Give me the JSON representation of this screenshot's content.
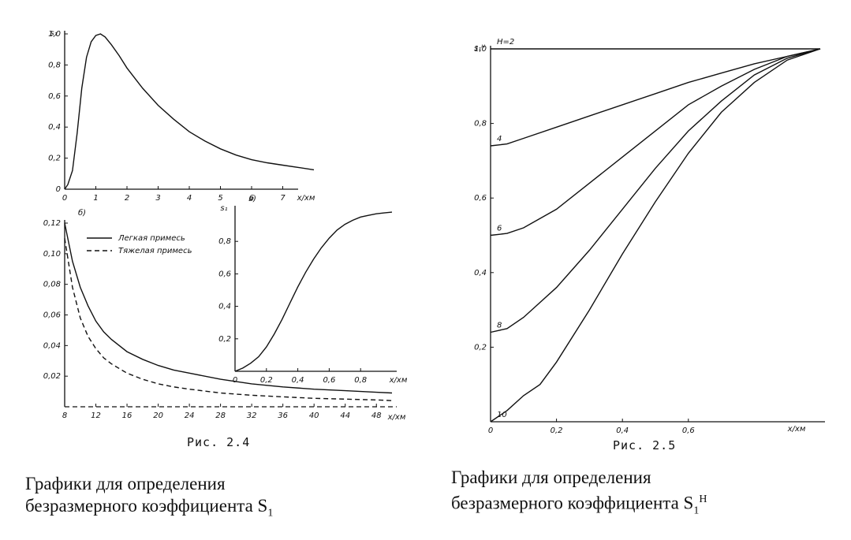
{
  "header_fragment": "",
  "fig24": {
    "caption": "Рис. 2.4",
    "desc_line1": "Графики для определения",
    "desc_line2": "безразмерного коэффициента S",
    "desc_sub": "1"
  },
  "fig25": {
    "caption": "Рис. 2.5",
    "desc_line1": "Графики для определения",
    "desc_line2": "безразмерного коэффициента S",
    "desc_sub": "1",
    "desc_sup": "H"
  },
  "chart_data": [
    {
      "id": "fig24a",
      "type": "line",
      "panel_label": "",
      "ylabel": "s₁",
      "xlabel": "x/xм",
      "xlim": [
        0,
        8
      ],
      "ylim": [
        0,
        1.0
      ],
      "xticks": [
        "0",
        "1",
        "2",
        "3",
        "4",
        "5",
        "6",
        "7"
      ],
      "yticks": [
        "0",
        "0,2",
        "0,4",
        "0,6",
        "0,8",
        "1,0"
      ],
      "series": [
        {
          "x": [
            0,
            0.1,
            0.25,
            0.4,
            0.55,
            0.7,
            0.85,
            1.0,
            1.15,
            1.3,
            1.5,
            1.75,
            2.0,
            2.5,
            3.0,
            3.5,
            4.0,
            4.5,
            5.0,
            5.5,
            6.0,
            6.5,
            7.0,
            7.5,
            8.0
          ],
          "y": [
            0,
            0.03,
            0.12,
            0.36,
            0.65,
            0.85,
            0.95,
            0.99,
            1.0,
            0.98,
            0.93,
            0.86,
            0.78,
            0.65,
            0.54,
            0.45,
            0.37,
            0.31,
            0.26,
            0.22,
            0.19,
            0.17,
            0.155,
            0.14,
            0.125
          ]
        }
      ]
    },
    {
      "id": "fig24b",
      "type": "line",
      "panel_label": "б)",
      "xlabel": "x/xм",
      "xlim": [
        8,
        50
      ],
      "ylim": [
        0,
        0.12
      ],
      "xticks": [
        "8",
        "12",
        "16",
        "20",
        "24",
        "28",
        "32",
        "36",
        "40",
        "44",
        "48"
      ],
      "yticks": [
        "0,02",
        "0,04",
        "0,06",
        "0,08",
        "0,10",
        "0,12"
      ],
      "legend": [
        "Легкая примесь",
        "Тяжелая примесь"
      ],
      "series": [
        {
          "name": "Легкая примесь",
          "style": "solid",
          "x": [
            8,
            9,
            10,
            11,
            12,
            13,
            14,
            16,
            18,
            20,
            22,
            24,
            28,
            32,
            36,
            40,
            44,
            48,
            50
          ],
          "y": [
            0.12,
            0.095,
            0.078,
            0.066,
            0.056,
            0.049,
            0.044,
            0.036,
            0.031,
            0.027,
            0.024,
            0.022,
            0.018,
            0.015,
            0.013,
            0.0115,
            0.0105,
            0.0095,
            0.009
          ]
        },
        {
          "name": "Тяжелая примесь",
          "style": "dashed",
          "x": [
            8,
            9,
            10,
            11,
            12,
            13,
            14,
            16,
            18,
            20,
            22,
            24,
            28,
            32,
            36,
            40,
            44,
            48,
            50
          ],
          "y": [
            0.11,
            0.078,
            0.058,
            0.046,
            0.038,
            0.032,
            0.028,
            0.022,
            0.018,
            0.015,
            0.013,
            0.0115,
            0.009,
            0.0075,
            0.0065,
            0.0055,
            0.005,
            0.0045,
            0.004
          ]
        }
      ]
    },
    {
      "id": "fig24v",
      "type": "line",
      "panel_label": "в)",
      "ylabel": "s₁",
      "xlabel": "x/xм",
      "xlim": [
        0,
        1.0
      ],
      "ylim": [
        0,
        1.0
      ],
      "xticks": [
        "0",
        "0,2",
        "0,4",
        "0,6",
        "0,8"
      ],
      "yticks": [
        "0,2",
        "0,4",
        "0,6",
        "0,8"
      ],
      "series": [
        {
          "x": [
            0,
            0.05,
            0.1,
            0.15,
            0.2,
            0.25,
            0.3,
            0.35,
            0.4,
            0.45,
            0.5,
            0.55,
            0.6,
            0.65,
            0.7,
            0.75,
            0.8,
            0.85,
            0.9,
            0.95,
            1.0
          ],
          "y": [
            0,
            0.02,
            0.05,
            0.09,
            0.15,
            0.23,
            0.32,
            0.42,
            0.52,
            0.61,
            0.69,
            0.76,
            0.82,
            0.87,
            0.905,
            0.93,
            0.95,
            0.96,
            0.97,
            0.975,
            0.98
          ]
        }
      ]
    },
    {
      "id": "fig25",
      "type": "line",
      "ylabel": "s₁ᴴ",
      "xlabel": "x/xм",
      "xlim": [
        0,
        1.0
      ],
      "ylim": [
        0,
        1.0
      ],
      "xticks": [
        "0",
        "0,2",
        "0,4",
        "0,6"
      ],
      "yticks": [
        "0,2",
        "0,4",
        "0,6",
        "0,8",
        "1,0"
      ],
      "series": [
        {
          "name": "H=2",
          "label": "H=2",
          "x": [
            0,
            1.0
          ],
          "y": [
            1.0,
            1.0
          ]
        },
        {
          "name": "4",
          "label": "4",
          "x": [
            0,
            0.05,
            0.1,
            0.2,
            0.3,
            0.4,
            0.5,
            0.6,
            0.7,
            0.8,
            0.9,
            1.0
          ],
          "y": [
            0.74,
            0.745,
            0.76,
            0.79,
            0.82,
            0.85,
            0.88,
            0.91,
            0.935,
            0.96,
            0.98,
            1.0
          ]
        },
        {
          "name": "6",
          "label": "6",
          "x": [
            0,
            0.05,
            0.1,
            0.2,
            0.3,
            0.4,
            0.5,
            0.6,
            0.7,
            0.8,
            0.9,
            1.0
          ],
          "y": [
            0.5,
            0.505,
            0.52,
            0.57,
            0.64,
            0.71,
            0.78,
            0.85,
            0.9,
            0.945,
            0.98,
            1.0
          ]
        },
        {
          "name": "8",
          "label": "8",
          "x": [
            0,
            0.05,
            0.1,
            0.2,
            0.3,
            0.4,
            0.5,
            0.6,
            0.7,
            0.8,
            0.9,
            1.0
          ],
          "y": [
            0.24,
            0.25,
            0.28,
            0.36,
            0.46,
            0.57,
            0.68,
            0.78,
            0.86,
            0.93,
            0.975,
            1.0
          ]
        },
        {
          "name": "10",
          "label": "10",
          "x": [
            0,
            0.05,
            0.1,
            0.15,
            0.2,
            0.3,
            0.4,
            0.5,
            0.6,
            0.7,
            0.8,
            0.9,
            1.0
          ],
          "y": [
            0,
            0.03,
            0.07,
            0.1,
            0.16,
            0.3,
            0.45,
            0.59,
            0.72,
            0.83,
            0.91,
            0.97,
            1.0
          ]
        }
      ]
    }
  ]
}
